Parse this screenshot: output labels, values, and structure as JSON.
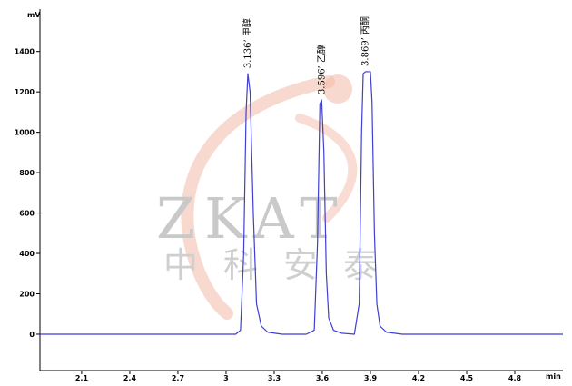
{
  "watermark": {
    "latin": "ZKAT",
    "cjk": [
      "中",
      "科",
      "安",
      "泰"
    ],
    "accent_color": "#f3b9a7"
  },
  "chart_data": {
    "type": "line",
    "title": "",
    "xlabel": "",
    "ylabel": "",
    "x_unit": "min",
    "y_unit": "mV",
    "xlim": [
      1.84,
      5.1
    ],
    "ylim": [
      -180,
      1610
    ],
    "x_ticks": [
      "2.1",
      "2.4",
      "2.7",
      "3",
      "3.3",
      "3.6",
      "3.9",
      "4.2",
      "4.5",
      "4.8"
    ],
    "y_ticks": [
      "0",
      "200",
      "400",
      "600",
      "800",
      "1000",
      "1200",
      "1400"
    ],
    "grid": false,
    "legend": "none",
    "line_color": "#3f3fd0",
    "series": [
      {
        "x": [
          1.84,
          3.06,
          3.09,
          3.11,
          3.125,
          3.136,
          3.15,
          3.17,
          3.19,
          3.22,
          3.26,
          3.35,
          3.5,
          3.55,
          3.57,
          3.585,
          3.596,
          3.61,
          3.625,
          3.64,
          3.67,
          3.72,
          3.8,
          3.83,
          3.845,
          3.855,
          3.869,
          3.9,
          3.91,
          3.925,
          3.94,
          3.96,
          4.0,
          4.1,
          5.1
        ],
        "y": [
          0,
          0,
          20,
          400,
          1100,
          1290,
          1200,
          600,
          150,
          40,
          10,
          0,
          0,
          20,
          450,
          1140,
          1160,
          900,
          300,
          80,
          20,
          5,
          0,
          150,
          1000,
          1290,
          1300,
          1300,
          1150,
          500,
          150,
          40,
          10,
          0,
          0
        ]
      }
    ],
    "peaks": [
      {
        "x": 3.136,
        "y": 1290,
        "label": "3.136’ 甲醇"
      },
      {
        "x": 3.596,
        "y": 1160,
        "label": "3.596’ 乙醇"
      },
      {
        "x": 3.869,
        "y": 1300,
        "label": "3.869’ 丙酮"
      }
    ]
  }
}
